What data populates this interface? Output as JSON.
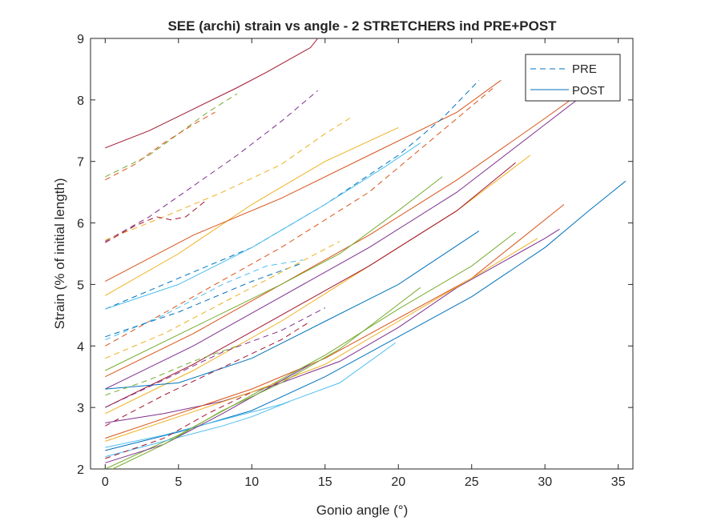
{
  "chart_data": {
    "type": "line",
    "title": "SEE (archi) strain vs angle - 2 STRETCHERS ind PRE+POST",
    "xlabel": "Gonio angle (°)",
    "ylabel": "Strain (% of initial length)",
    "xlim": [
      -1,
      36
    ],
    "ylim": [
      2,
      9
    ],
    "xticks": [
      0,
      5,
      10,
      15,
      20,
      25,
      30,
      35
    ],
    "yticks": [
      2,
      3,
      4,
      5,
      6,
      7,
      8,
      9
    ],
    "xtick_labels": [
      "0",
      "5",
      "10",
      "15",
      "20",
      "25",
      "30",
      "35"
    ],
    "ytick_labels": [
      "2",
      "3",
      "4",
      "5",
      "6",
      "7",
      "8",
      "9"
    ],
    "grid": false,
    "legend_position": "top-right",
    "legend": [
      {
        "label": "PRE",
        "style": "dashed",
        "color": "#0072BD"
      },
      {
        "label": "POST",
        "style": "solid",
        "color": "#0072BD"
      }
    ],
    "series": [
      {
        "style": "solid",
        "color": "#A2142F",
        "points": [
          [
            0,
            7.22
          ],
          [
            3,
            7.5
          ],
          [
            6,
            7.85
          ],
          [
            9,
            8.2
          ],
          [
            11,
            8.45
          ],
          [
            14,
            8.85
          ],
          [
            14.5,
            9
          ]
        ]
      },
      {
        "style": "dashed",
        "color": "#77AC30",
        "points": [
          [
            0,
            6.75
          ],
          [
            3,
            7.1
          ],
          [
            5,
            7.45
          ],
          [
            7,
            7.8
          ],
          [
            9,
            8.1
          ]
        ]
      },
      {
        "style": "dashed",
        "color": "#D95319",
        "points": [
          [
            0,
            6.7
          ],
          [
            2,
            6.95
          ],
          [
            4,
            7.3
          ],
          [
            6,
            7.6
          ],
          [
            7.5,
            7.8
          ]
        ]
      },
      {
        "style": "dashed",
        "color": "#7E2F8E",
        "points": [
          [
            0,
            5.7
          ],
          [
            3,
            6.1
          ],
          [
            6,
            6.6
          ],
          [
            9,
            7.1
          ],
          [
            12,
            7.65
          ],
          [
            14.5,
            8.15
          ]
        ]
      },
      {
        "style": "dashed",
        "color": "#EDB120",
        "points": [
          [
            0,
            5.72
          ],
          [
            4,
            6.1
          ],
          [
            8,
            6.5
          ],
          [
            12,
            6.95
          ],
          [
            15,
            7.45
          ],
          [
            16.8,
            7.72
          ]
        ]
      },
      {
        "style": "dashed",
        "color": "#A2142F",
        "points": [
          [
            0,
            5.68
          ],
          [
            2,
            5.95
          ],
          [
            3.5,
            6.1
          ],
          [
            4.5,
            6.05
          ],
          [
            5.5,
            6.1
          ],
          [
            6.8,
            6.35
          ]
        ]
      },
      {
        "style": "solid",
        "color": "#EDB120",
        "points": [
          [
            0,
            4.82
          ],
          [
            5,
            5.5
          ],
          [
            10,
            6.3
          ],
          [
            15,
            7.0
          ],
          [
            20,
            7.55
          ]
        ]
      },
      {
        "style": "solid",
        "color": "#D95319",
        "points": [
          [
            0,
            5.05
          ],
          [
            6,
            5.8
          ],
          [
            12,
            6.4
          ],
          [
            18,
            7.1
          ],
          [
            24,
            7.8
          ],
          [
            27,
            8.32
          ]
        ]
      },
      {
        "style": "dashed",
        "color": "#0072BD",
        "points": [
          [
            0,
            4.6
          ],
          [
            5,
            5.1
          ],
          [
            10,
            5.6
          ],
          [
            15,
            6.3
          ],
          [
            20,
            7.1
          ],
          [
            23,
            7.7
          ],
          [
            25.5,
            8.32
          ]
        ]
      },
      {
        "style": "dashed",
        "color": "#D95319",
        "points": [
          [
            0,
            4.0
          ],
          [
            6,
            4.8
          ],
          [
            12,
            5.6
          ],
          [
            18,
            6.5
          ],
          [
            22,
            7.3
          ],
          [
            26.5,
            8.2
          ]
        ]
      },
      {
        "style": "solid",
        "color": "#4DBEEE",
        "points": [
          [
            0,
            4.6
          ],
          [
            5,
            5.0
          ],
          [
            10,
            5.6
          ],
          [
            15,
            6.3
          ],
          [
            19,
            6.9
          ],
          [
            21.5,
            7.3
          ]
        ]
      },
      {
        "style": "solid",
        "color": "#7E2F8E",
        "points": [
          [
            0,
            3.3
          ],
          [
            6,
            4.0
          ],
          [
            12,
            4.8
          ],
          [
            18,
            5.6
          ],
          [
            24,
            6.5
          ],
          [
            30,
            7.6
          ],
          [
            33,
            8.15
          ]
        ]
      },
      {
        "style": "solid",
        "color": "#D95319",
        "points": [
          [
            0,
            3.5
          ],
          [
            6,
            4.2
          ],
          [
            12,
            5.0
          ],
          [
            18,
            5.8
          ],
          [
            24,
            6.7
          ],
          [
            30,
            7.7
          ],
          [
            33.5,
            8.3
          ]
        ]
      },
      {
        "style": "solid",
        "color": "#EDB120",
        "points": [
          [
            0,
            2.9
          ],
          [
            6,
            3.6
          ],
          [
            12,
            4.4
          ],
          [
            18,
            5.3
          ],
          [
            24,
            6.2
          ],
          [
            29,
            7.1
          ]
        ]
      },
      {
        "style": "solid",
        "color": "#A2142F",
        "points": [
          [
            0,
            3.0
          ],
          [
            6,
            3.7
          ],
          [
            12,
            4.5
          ],
          [
            18,
            5.3
          ],
          [
            24,
            6.2
          ],
          [
            28,
            6.98
          ]
        ]
      },
      {
        "style": "solid",
        "color": "#77AC30",
        "points": [
          [
            0,
            3.6
          ],
          [
            6,
            4.3
          ],
          [
            12,
            5.0
          ],
          [
            16,
            5.5
          ],
          [
            20,
            6.2
          ],
          [
            23,
            6.75
          ]
        ]
      },
      {
        "style": "solid",
        "color": "#0072BD",
        "points": [
          [
            0,
            3.3
          ],
          [
            5,
            3.4
          ],
          [
            10,
            3.8
          ],
          [
            15,
            4.4
          ],
          [
            20,
            5.0
          ],
          [
            25.5,
            5.87
          ]
        ]
      },
      {
        "style": "dashed",
        "color": "#4DBEEE",
        "points": [
          [
            0,
            4.1
          ],
          [
            4,
            4.5
          ],
          [
            8,
            5.0
          ],
          [
            11,
            5.3
          ],
          [
            13.5,
            5.4
          ]
        ]
      },
      {
        "style": "dashed",
        "color": "#0072BD",
        "points": [
          [
            0,
            4.15
          ],
          [
            5,
            4.55
          ],
          [
            10,
            5.05
          ],
          [
            13.5,
            5.35
          ]
        ]
      },
      {
        "style": "dashed",
        "color": "#EDB120",
        "points": [
          [
            0,
            3.8
          ],
          [
            4,
            4.2
          ],
          [
            8,
            4.7
          ],
          [
            12,
            5.2
          ],
          [
            16,
            5.7
          ]
        ]
      },
      {
        "style": "dashed",
        "color": "#7E2F8E",
        "points": [
          [
            0,
            3.0
          ],
          [
            4,
            3.45
          ],
          [
            8,
            3.9
          ],
          [
            12,
            4.25
          ],
          [
            15,
            4.62
          ]
        ]
      },
      {
        "style": "dashed",
        "color": "#A2142F",
        "points": [
          [
            0,
            2.7
          ],
          [
            4,
            3.2
          ],
          [
            8,
            3.65
          ],
          [
            12,
            4.1
          ],
          [
            14,
            4.4
          ]
        ]
      },
      {
        "style": "dashed",
        "color": "#77AC30",
        "points": [
          [
            0,
            3.2
          ],
          [
            3,
            3.45
          ],
          [
            6,
            3.75
          ],
          [
            9,
            4.0
          ]
        ]
      },
      {
        "style": "solid",
        "color": "#7E2F8E",
        "points": [
          [
            0,
            2.75
          ],
          [
            4,
            2.9
          ],
          [
            8,
            3.1
          ],
          [
            12,
            3.4
          ],
          [
            16,
            3.75
          ],
          [
            20,
            4.3
          ],
          [
            24,
            4.95
          ],
          [
            30,
            5.75
          ],
          [
            31,
            5.9
          ]
        ]
      },
      {
        "style": "solid",
        "color": "#D95319",
        "points": [
          [
            0,
            2.5
          ],
          [
            5,
            2.9
          ],
          [
            10,
            3.3
          ],
          [
            15,
            3.8
          ],
          [
            20,
            4.45
          ],
          [
            25,
            5.1
          ],
          [
            31.3,
            6.3
          ]
        ]
      },
      {
        "style": "solid",
        "color": "#0072BD",
        "points": [
          [
            0,
            2.3
          ],
          [
            5,
            2.6
          ],
          [
            10,
            2.95
          ],
          [
            15,
            3.5
          ],
          [
            20,
            4.15
          ],
          [
            25,
            4.8
          ],
          [
            30,
            5.6
          ],
          [
            33,
            6.2
          ],
          [
            35.5,
            6.68
          ]
        ]
      },
      {
        "style": "solid",
        "color": "#77AC30",
        "points": [
          [
            0,
            2.0
          ],
          [
            5,
            2.55
          ],
          [
            10,
            3.2
          ],
          [
            15,
            3.85
          ],
          [
            20,
            4.6
          ],
          [
            25,
            5.3
          ],
          [
            28,
            5.85
          ]
        ]
      },
      {
        "style": "solid",
        "color": "#EDB120",
        "points": [
          [
            0,
            2.45
          ],
          [
            5,
            2.85
          ],
          [
            10,
            3.25
          ],
          [
            15,
            3.7
          ],
          [
            20,
            4.4
          ],
          [
            25,
            5.1
          ],
          [
            29.5,
            5.75
          ]
        ]
      },
      {
        "style": "solid",
        "color": "#4DBEEE",
        "points": [
          [
            0,
            2.35
          ],
          [
            4,
            2.55
          ],
          [
            8,
            2.8
          ],
          [
            12,
            3.05
          ],
          [
            16,
            3.4
          ],
          [
            19.8,
            4.05
          ]
        ]
      },
      {
        "style": "solid",
        "color": "#4DBEEE",
        "points": [
          [
            0,
            2.2
          ],
          [
            4,
            2.45
          ],
          [
            8,
            2.7
          ],
          [
            10,
            2.85
          ],
          [
            12.6,
            3.1
          ]
        ]
      },
      {
        "style": "dashed",
        "color": "#A2142F",
        "points": [
          [
            0,
            2.17
          ],
          [
            4,
            2.5
          ],
          [
            7,
            2.9
          ],
          [
            10,
            3.25
          ]
        ]
      },
      {
        "style": "solid",
        "color": "#7E2F8E",
        "points": [
          [
            0,
            2.1
          ],
          [
            4,
            2.4
          ],
          [
            8,
            2.9
          ],
          [
            11,
            3.3
          ],
          [
            14,
            3.7
          ]
        ]
      },
      {
        "style": "solid",
        "color": "#77AC30",
        "points": [
          [
            0.5,
            2.0
          ],
          [
            4,
            2.4
          ],
          [
            8,
            2.95
          ],
          [
            12,
            3.4
          ],
          [
            16,
            3.95
          ],
          [
            21.5,
            4.95
          ]
        ]
      }
    ]
  }
}
